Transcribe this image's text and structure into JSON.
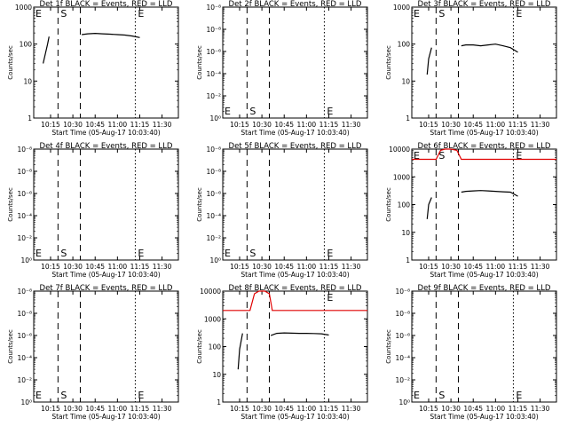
{
  "panel_layout": {
    "cols": 3,
    "rows": 3
  },
  "shared": {
    "xlabel": "Start Time (05-Aug-17 10:03:40)",
    "ylabel": "Counts/sec",
    "x_tick_labels": [
      "10:15",
      "10:30",
      "10:45",
      "11:00",
      "11:15",
      "11:30"
    ],
    "colors": {
      "events": "#000000",
      "lld": "#e00000",
      "axes": "#000000"
    }
  },
  "chart_data": [
    {
      "type": "line",
      "title": "Det 1f BLACK = Events, RED = LLD",
      "xlim": [
        "10:03:40",
        "11:41:00"
      ],
      "ylim": [
        1,
        1000
      ],
      "yscale": "log",
      "y_tick_labels": [
        "1",
        "10",
        "100",
        "1000"
      ],
      "markers": [
        {
          "label": "E",
          "time": "10:03:40",
          "style": "none"
        },
        {
          "label": "S",
          "time": "10:20:00",
          "style": "dashed"
        },
        {
          "label": "",
          "time": "10:35:00",
          "style": "dashed"
        },
        {
          "label": "E",
          "time": "11:12:00",
          "style": "dotted"
        }
      ],
      "series": [
        {
          "role": "events",
          "x": [
            "10:10",
            "10:11",
            "10:13",
            "10:14"
          ],
          "y": [
            30,
            45,
            100,
            160
          ]
        },
        {
          "role": "events",
          "x": [
            "10:36",
            "10:40",
            "10:45",
            "10:50",
            "10:55",
            "11:00",
            "11:05",
            "11:10",
            "11:15"
          ],
          "y": [
            180,
            190,
            195,
            190,
            185,
            180,
            175,
            165,
            150
          ]
        }
      ]
    },
    {
      "type": "line",
      "title": "Det 2f BLACK = Events, RED = LLD",
      "xlim": [
        "10:03:40",
        "11:41:00"
      ],
      "ylim": [
        1,
        1000000
      ],
      "yscale": "log",
      "y_tick_labels": [
        "10⁰",
        "10⁻²",
        "10⁻⁴",
        "10⁻⁶",
        "10⁻⁸",
        "10⁻⁸"
      ],
      "markers": [
        {
          "label": "E",
          "time": "10:03:40",
          "style": "none"
        },
        {
          "label": "S",
          "time": "10:20:00",
          "style": "dashed"
        },
        {
          "label": "",
          "time": "10:35:00",
          "style": "dashed"
        },
        {
          "label": "E",
          "time": "11:12:00",
          "style": "dotted"
        }
      ],
      "series": []
    },
    {
      "type": "line",
      "title": "Det 3f BLACK = Events, RED = LLD",
      "xlim": [
        "10:03:40",
        "11:41:00"
      ],
      "ylim": [
        1,
        1000
      ],
      "yscale": "log",
      "y_tick_labels": [
        "1",
        "10",
        "100",
        "1000"
      ],
      "markers": [
        {
          "label": "E",
          "time": "10:03:40",
          "style": "none"
        },
        {
          "label": "S",
          "time": "10:20:00",
          "style": "dashed"
        },
        {
          "label": "",
          "time": "10:35:00",
          "style": "dashed"
        },
        {
          "label": "E",
          "time": "11:12:00",
          "style": "dotted"
        }
      ],
      "series": [
        {
          "role": "events",
          "x": [
            "10:14",
            "10:15",
            "10:17"
          ],
          "y": [
            15,
            40,
            80
          ]
        },
        {
          "role": "events",
          "x": [
            "10:37",
            "10:40",
            "10:45",
            "10:50",
            "10:55",
            "11:00",
            "11:05",
            "11:10",
            "11:15"
          ],
          "y": [
            90,
            95,
            95,
            90,
            95,
            100,
            90,
            80,
            60
          ]
        }
      ]
    },
    {
      "type": "line",
      "title": "Det 4f BLACK = Events, RED = LLD",
      "xlim": [
        "10:03:40",
        "11:41:00"
      ],
      "ylim": [
        1,
        1000000
      ],
      "yscale": "log",
      "y_tick_labels": [
        "10⁰",
        "10⁻²",
        "10⁻⁴",
        "10⁻⁶",
        "10⁻⁸",
        "10⁻⁸"
      ],
      "markers": [
        {
          "label": "E",
          "time": "10:03:40",
          "style": "none"
        },
        {
          "label": "S",
          "time": "10:20:00",
          "style": "dashed"
        },
        {
          "label": "",
          "time": "10:35:00",
          "style": "dashed"
        },
        {
          "label": "E",
          "time": "11:12:00",
          "style": "dotted"
        }
      ],
      "series": []
    },
    {
      "type": "line",
      "title": "Det 5f BLACK = Events, RED = LLD",
      "xlim": [
        "10:03:40",
        "11:41:00"
      ],
      "ylim": [
        1,
        1000000
      ],
      "yscale": "log",
      "y_tick_labels": [
        "10⁰",
        "10⁻²",
        "10⁻⁴",
        "10⁻⁶",
        "10⁻⁸",
        "10⁻⁸"
      ],
      "markers": [
        {
          "label": "E",
          "time": "10:03:40",
          "style": "none"
        },
        {
          "label": "S",
          "time": "10:20:00",
          "style": "dashed"
        },
        {
          "label": "",
          "time": "10:35:00",
          "style": "dashed"
        },
        {
          "label": "E",
          "time": "11:12:00",
          "style": "dotted"
        }
      ],
      "series": []
    },
    {
      "type": "line",
      "title": "Det 6f BLACK = Events, RED = LLD",
      "xlim": [
        "10:03:40",
        "11:41:00"
      ],
      "ylim": [
        1,
        10000
      ],
      "yscale": "log",
      "y_tick_labels": [
        "1",
        "10",
        "100",
        "1000",
        "10000"
      ],
      "markers": [
        {
          "label": "E",
          "time": "10:03:40",
          "style": "none"
        },
        {
          "label": "S",
          "time": "10:20:00",
          "style": "dashed"
        },
        {
          "label": "",
          "time": "10:35:00",
          "style": "dashed"
        },
        {
          "label": "E",
          "time": "11:12:00",
          "style": "dotted"
        }
      ],
      "series": [
        {
          "role": "lld",
          "x": [
            "10:03:40",
            "10:20",
            "10:23",
            "10:26",
            "10:30",
            "10:34",
            "10:37",
            "11:41"
          ],
          "y": [
            4300,
            4300,
            9000,
            11000,
            11000,
            9000,
            4300,
            4300
          ]
        },
        {
          "role": "events",
          "x": [
            "10:14",
            "10:15",
            "10:17"
          ],
          "y": [
            30,
            100,
            180
          ]
        },
        {
          "role": "events",
          "x": [
            "10:37",
            "10:40",
            "10:45",
            "10:50",
            "10:55",
            "11:00",
            "11:05",
            "11:10",
            "11:15"
          ],
          "y": [
            280,
            300,
            310,
            320,
            310,
            300,
            290,
            280,
            200
          ]
        }
      ]
    },
    {
      "type": "line",
      "title": "Det 7f BLACK = Events, RED = LLD",
      "xlim": [
        "10:03:40",
        "11:41:00"
      ],
      "ylim": [
        1,
        1000000
      ],
      "yscale": "log",
      "y_tick_labels": [
        "10⁰",
        "10⁻²",
        "10⁻⁴",
        "10⁻⁶",
        "10⁻⁸",
        "10⁻⁸"
      ],
      "markers": [
        {
          "label": "E",
          "time": "10:03:40",
          "style": "none"
        },
        {
          "label": "S",
          "time": "10:20:00",
          "style": "dashed"
        },
        {
          "label": "",
          "time": "10:35:00",
          "style": "dashed"
        },
        {
          "label": "E",
          "time": "11:12:00",
          "style": "dotted"
        }
      ],
      "series": []
    },
    {
      "type": "line",
      "title": "Det 8f BLACK = Events, RED = LLD",
      "xlim": [
        "10:03:40",
        "11:41:00"
      ],
      "ylim": [
        1,
        10000
      ],
      "yscale": "log",
      "y_tick_labels": [
        "1",
        "10",
        "100",
        "1000",
        "10000"
      ],
      "markers": [
        {
          "label": "",
          "time": "10:03:40",
          "style": "none"
        },
        {
          "label": "",
          "time": "10:20:00",
          "style": "dashed"
        },
        {
          "label": "",
          "time": "10:35:00",
          "style": "dashed"
        },
        {
          "label": "E",
          "time": "11:12:00",
          "style": "dotted"
        }
      ],
      "series": [
        {
          "role": "lld",
          "x": [
            "10:03:40",
            "10:22",
            "10:25",
            "10:28",
            "10:32",
            "10:35",
            "10:37",
            "11:41"
          ],
          "y": [
            2000,
            2000,
            8000,
            12000,
            12000,
            8000,
            2000,
            2000
          ]
        },
        {
          "role": "events",
          "x": [
            "10:14",
            "10:15",
            "10:17"
          ],
          "y": [
            15,
            80,
            300
          ]
        },
        {
          "role": "events",
          "x": [
            "10:36",
            "10:40",
            "10:45",
            "10:50",
            "10:55",
            "11:00",
            "11:05",
            "11:10",
            "11:15"
          ],
          "y": [
            250,
            300,
            310,
            305,
            300,
            300,
            295,
            290,
            260
          ]
        }
      ]
    },
    {
      "type": "line",
      "title": "Det 9f BLACK = Events, RED = LLD",
      "xlim": [
        "10:03:40",
        "11:41:00"
      ],
      "ylim": [
        1,
        1000000
      ],
      "yscale": "log",
      "y_tick_labels": [
        "10⁰",
        "10⁻²",
        "10⁻⁴",
        "10⁻⁶",
        "10⁻⁸",
        "10⁻⁸"
      ],
      "markers": [
        {
          "label": "E",
          "time": "10:03:40",
          "style": "none"
        },
        {
          "label": "S",
          "time": "10:20:00",
          "style": "dashed"
        },
        {
          "label": "",
          "time": "10:35:00",
          "style": "dashed"
        },
        {
          "label": "E",
          "time": "11:12:00",
          "style": "dotted"
        }
      ],
      "series": []
    }
  ]
}
